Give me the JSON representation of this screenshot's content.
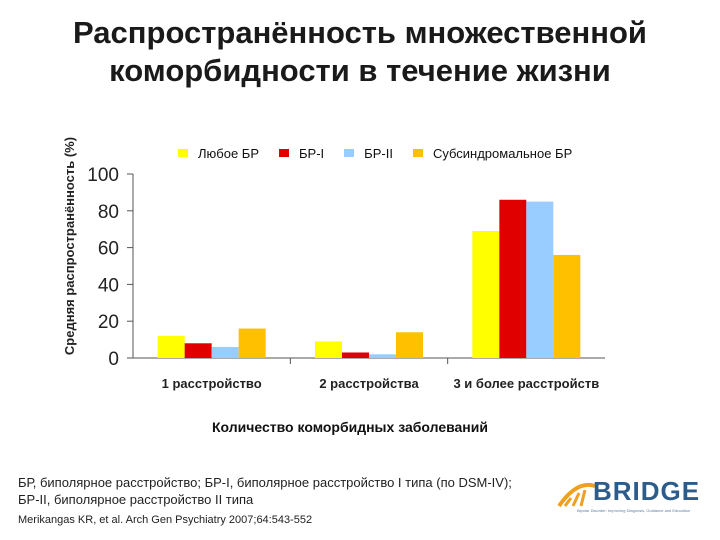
{
  "slide": {
    "title_line1": "Распространённость множественной",
    "title_line2": "коморбидности в течение жизни",
    "footnote_line1": "БР, биполярное расстройство; БР-I, биполярное расстройство I типа (по DSM-IV);",
    "footnote_line2": "БР-II, биполярное расстройство II типа",
    "citation": "Merikangas KR, et al. Arch Gen Psychiatry 2007;64:543-552",
    "logo_text": "BRIDGE",
    "logo_subtext": "Bipolar Disorder: Improving Diagnosis, Guidance and Education"
  },
  "chart_data": {
    "type": "bar",
    "ylabel": "Средняя распространённость (%)",
    "xlabel": "Количество коморбидных заболеваний",
    "ylim": [
      0,
      100
    ],
    "yticks": [
      "0",
      "20",
      "40",
      "60",
      "80",
      "100"
    ],
    "grid": false,
    "legend_position": "top",
    "categories": [
      "1 расстройство",
      "2 расстройства",
      "3 и более расстройств"
    ],
    "series": [
      {
        "name": "Любое БР",
        "color": "#ffff00",
        "values": [
          12,
          9,
          69
        ]
      },
      {
        "name": "БР-I",
        "color": "#e00000",
        "values": [
          8,
          3,
          86
        ]
      },
      {
        "name": "БР-II",
        "color": "#99ccff",
        "values": [
          6,
          2,
          85
        ]
      },
      {
        "name": "Субсиндромальное БР",
        "color": "#ffc000",
        "values": [
          16,
          14,
          56
        ]
      }
    ]
  }
}
